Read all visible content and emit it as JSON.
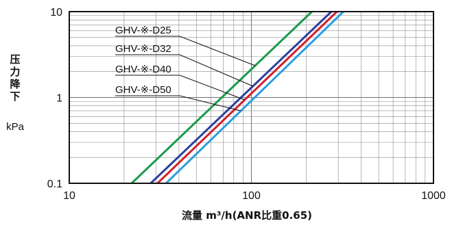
{
  "chart_data": {
    "type": "line",
    "xlabel": "流量 m³/h(ANR比重0.65)",
    "ylabel": "压力降下",
    "yunit": "kPa",
    "xscale": "log",
    "yscale": "log",
    "xlim": [
      10,
      1000
    ],
    "ylim": [
      0.1,
      10
    ],
    "xticks": [
      "10",
      "100",
      "1000"
    ],
    "yticks": [
      "0.1",
      "1",
      "10"
    ],
    "grid": true,
    "series": [
      {
        "name": "GHV-※-D25",
        "color": "#1a9a4a",
        "x": [
          22,
          215
        ],
        "y": [
          0.1,
          10
        ]
      },
      {
        "name": "GHV-※-D32",
        "color": "#2a3f9e",
        "x": [
          28,
          275
        ],
        "y": [
          0.1,
          10
        ]
      },
      {
        "name": "GHV-※-D40",
        "color": "#d0202e",
        "x": [
          30.5,
          295
        ],
        "y": [
          0.1,
          10
        ]
      },
      {
        "name": "GHV-※-D50",
        "color": "#2a9de0",
        "x": [
          34,
          320
        ],
        "y": [
          0.1,
          10
        ]
      }
    ]
  }
}
